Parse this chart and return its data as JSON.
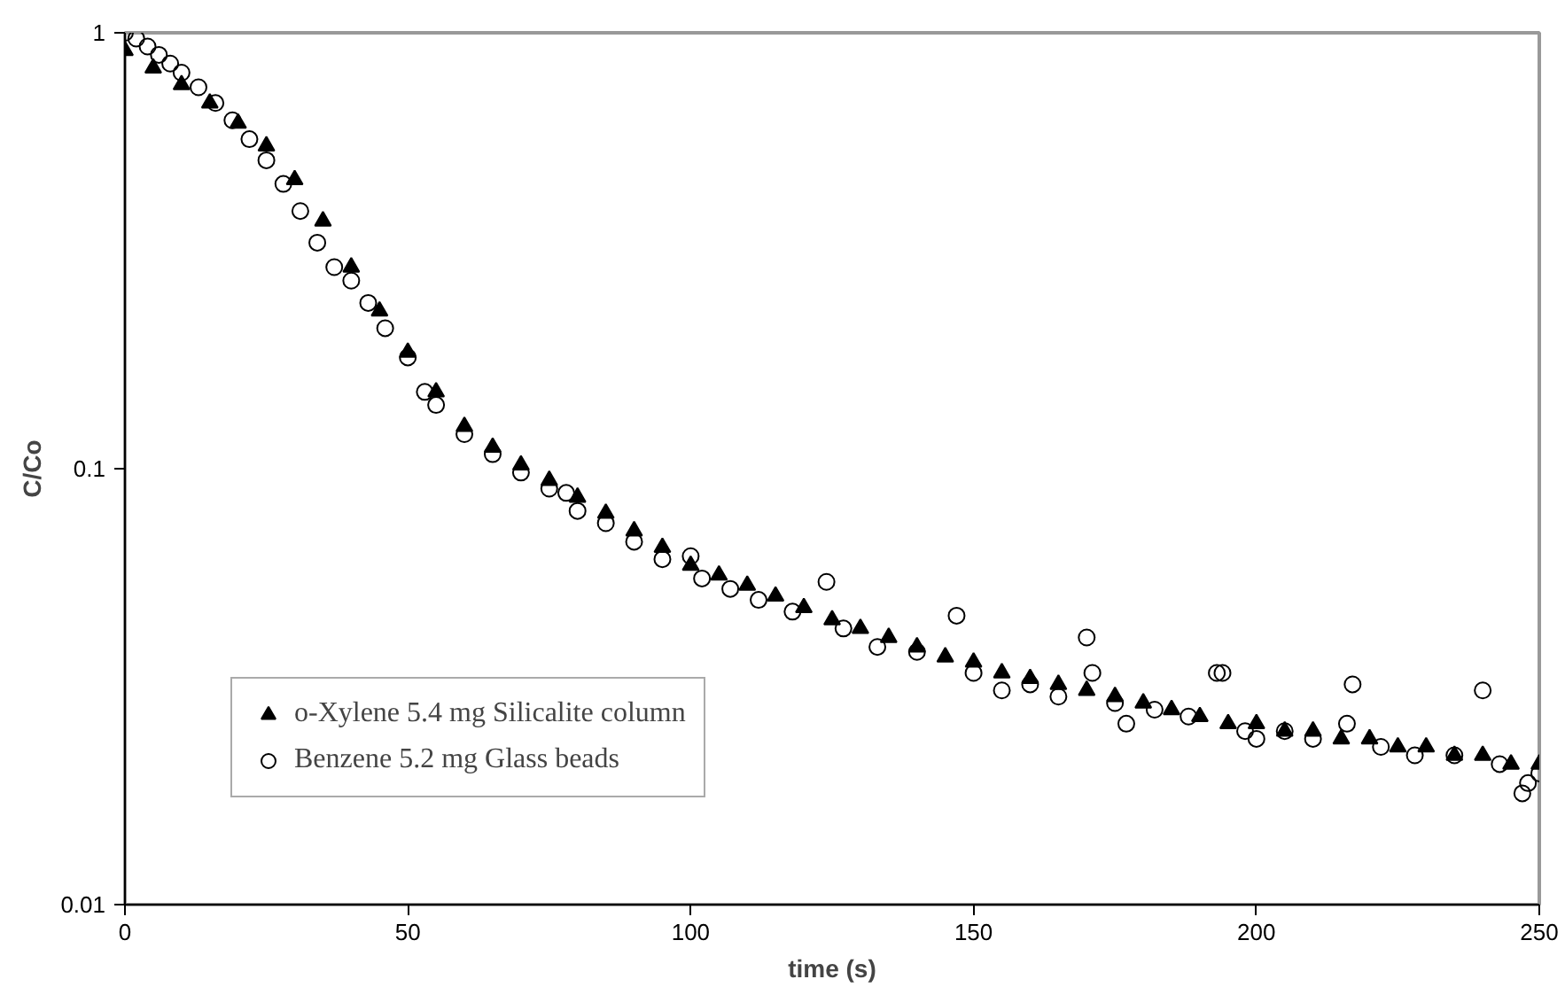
{
  "chart_data": {
    "type": "scatter",
    "xlabel": "time (s)",
    "ylabel": "C/Co",
    "log": "y",
    "xlim": [
      0,
      250
    ],
    "ylim": [
      0.01,
      1
    ],
    "xticks": [
      0,
      50,
      100,
      150,
      200,
      250
    ],
    "yticks": [
      0.01,
      0.1,
      1
    ],
    "grid": false,
    "legend": "bottom left",
    "series": [
      {
        "name": "o-Xylene 5.4 mg Silicalite column",
        "color": "#000000",
        "marker": "triangle",
        "x": [
          0,
          5,
          10,
          15,
          20,
          25,
          30,
          35,
          40,
          45,
          50,
          55,
          60,
          65,
          70,
          75,
          80,
          85,
          90,
          95,
          100,
          105,
          110,
          115,
          120,
          125,
          130,
          135,
          140,
          145,
          150,
          155,
          160,
          165,
          170,
          175,
          180,
          185,
          190,
          195,
          200,
          205,
          210,
          215,
          220,
          225,
          230,
          235,
          240,
          245,
          250
        ],
        "values": [
          0.91,
          0.83,
          0.76,
          0.69,
          0.62,
          0.55,
          0.46,
          0.37,
          0.29,
          0.23,
          0.185,
          0.15,
          0.125,
          0.112,
          0.102,
          0.094,
          0.086,
          0.079,
          0.072,
          0.066,
          0.06,
          0.057,
          0.054,
          0.051,
          0.048,
          0.045,
          0.043,
          0.041,
          0.039,
          0.037,
          0.036,
          0.034,
          0.033,
          0.032,
          0.031,
          0.03,
          0.029,
          0.028,
          0.027,
          0.026,
          0.026,
          0.025,
          0.025,
          0.024,
          0.024,
          0.023,
          0.023,
          0.022,
          0.022,
          0.021,
          0.021
        ]
      },
      {
        "name": "Benzene 5.2 mg Glass beads",
        "color": "#000000",
        "marker": "circle",
        "x": [
          0,
          2,
          4,
          6,
          8,
          10,
          13,
          16,
          19,
          22,
          25,
          28,
          31,
          34,
          37,
          40,
          43,
          46,
          50,
          53,
          55,
          60,
          65,
          70,
          75,
          78,
          80,
          85,
          90,
          95,
          100,
          102,
          107,
          112,
          118,
          124,
          127,
          133,
          140,
          147,
          150,
          155,
          160,
          165,
          170,
          171,
          175,
          177,
          182,
          188,
          193,
          194,
          198,
          200,
          205,
          210,
          216,
          217,
          222,
          228,
          235,
          240,
          243,
          247,
          248,
          250
        ],
        "values": [
          1.0,
          0.97,
          0.93,
          0.89,
          0.85,
          0.81,
          0.75,
          0.69,
          0.63,
          0.57,
          0.51,
          0.45,
          0.39,
          0.33,
          0.29,
          0.27,
          0.24,
          0.21,
          0.18,
          0.15,
          0.14,
          0.12,
          0.108,
          0.098,
          0.09,
          0.088,
          0.08,
          0.075,
          0.068,
          0.062,
          0.063,
          0.056,
          0.053,
          0.05,
          0.047,
          0.055,
          0.043,
          0.039,
          0.038,
          0.046,
          0.034,
          0.031,
          0.032,
          0.03,
          0.041,
          0.034,
          0.029,
          0.026,
          0.028,
          0.027,
          0.034,
          0.034,
          0.025,
          0.024,
          0.025,
          0.024,
          0.026,
          0.032,
          0.023,
          0.022,
          0.022,
          0.031,
          0.021,
          0.018,
          0.019,
          0.02
        ]
      }
    ]
  }
}
